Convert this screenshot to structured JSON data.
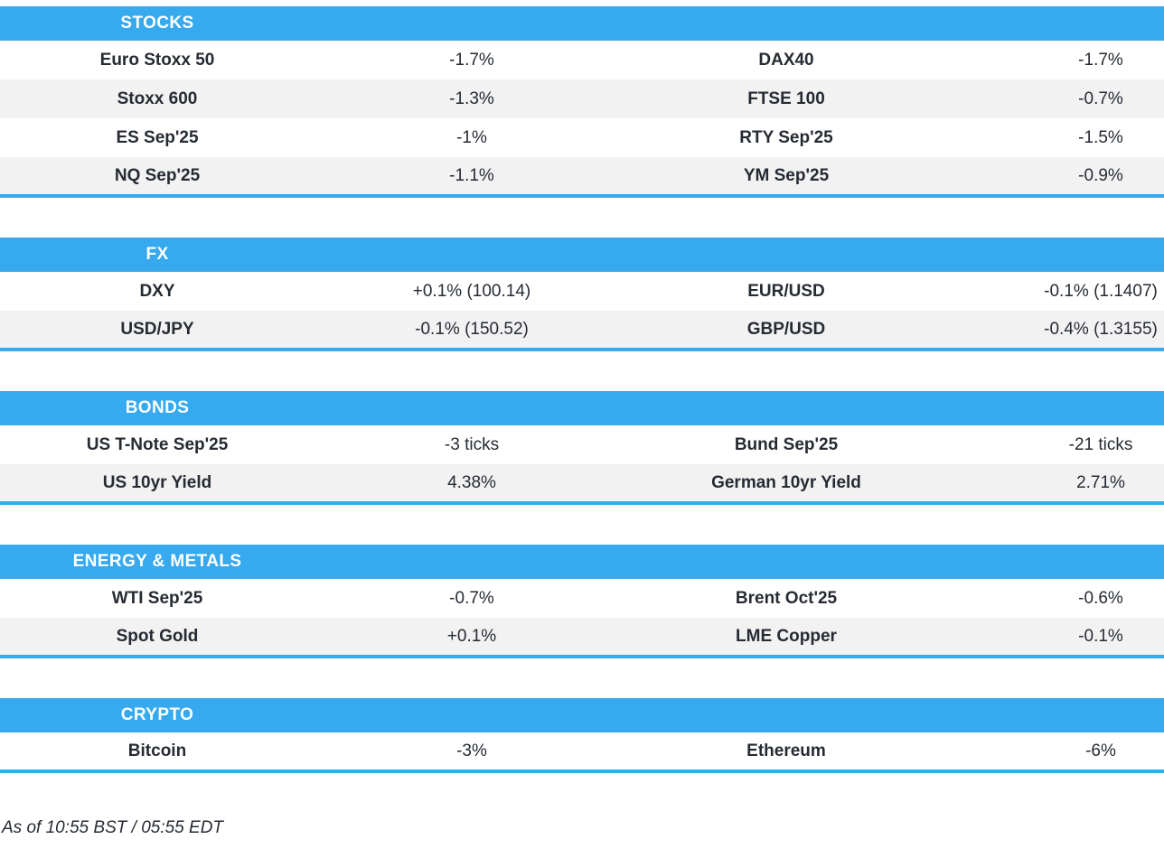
{
  "colors": {
    "accent": "#37a9ee",
    "row_alt": "#f2f2f3",
    "text": "#262b33",
    "header_text": "#ffffff"
  },
  "sections": [
    {
      "title": "STOCKS",
      "rows": [
        [
          "Euro Stoxx 50",
          "-1.7%",
          "DAX40",
          "-1.7%"
        ],
        [
          "Stoxx 600",
          "-1.3%",
          "FTSE 100",
          "-0.7%"
        ],
        [
          "ES Sep'25",
          "-1%",
          "RTY Sep'25",
          "-1.5%"
        ],
        [
          "NQ Sep'25",
          "-1.1%",
          "YM Sep'25",
          "-0.9%"
        ]
      ]
    },
    {
      "title": "FX",
      "rows": [
        [
          "DXY",
          "+0.1% (100.14)",
          "EUR/USD",
          "-0.1% (1.1407)"
        ],
        [
          "USD/JPY",
          "-0.1% (150.52)",
          "GBP/USD",
          "-0.4% (1.3155)"
        ]
      ]
    },
    {
      "title": "BONDS",
      "rows": [
        [
          "US T-Note Sep'25",
          "-3 ticks",
          "Bund Sep'25",
          "-21 ticks"
        ],
        [
          "US 10yr Yield",
          "4.38%",
          "German 10yr Yield",
          "2.71%"
        ]
      ]
    },
    {
      "title": "ENERGY & METALS",
      "rows": [
        [
          "WTI Sep'25",
          "-0.7%",
          "Brent Oct'25",
          "-0.6%"
        ],
        [
          "Spot Gold",
          "+0.1%",
          "LME Copper",
          "-0.1%"
        ]
      ]
    },
    {
      "title": "CRYPTO",
      "rows": [
        [
          "Bitcoin",
          "-3%",
          "Ethereum",
          "-6%"
        ]
      ]
    }
  ],
  "footer": {
    "text": "As of 10:55 BST / 05:55 EDT"
  }
}
